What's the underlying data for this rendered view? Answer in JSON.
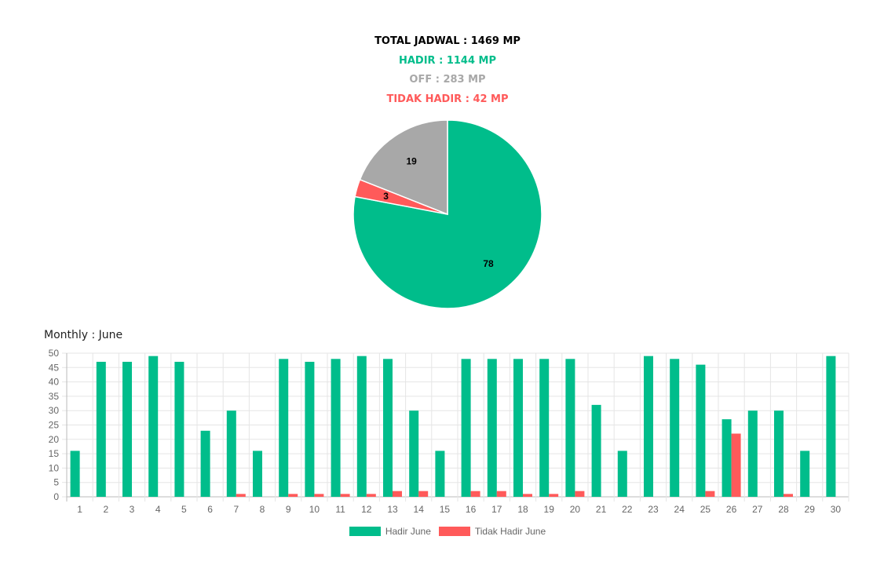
{
  "summary": {
    "total": "TOTAL JADWAL : 1469 MP",
    "hadir": "HADIR : 1144 MP",
    "off": "OFF : 283 MP",
    "tidak_hadir": "TIDAK HADIR : 42 MP"
  },
  "colors": {
    "hadir": "#00bd8b",
    "off": "#a8a8a8",
    "tidak_hadir": "#ff5a5a",
    "grid": "#e5e5e5",
    "tick": "#666666"
  },
  "monthly_title": "Monthly : June",
  "chart_data": [
    {
      "type": "pie",
      "slices": [
        {
          "label": "78",
          "value": 78,
          "color": "#00bd8b"
        },
        {
          "label": "3",
          "value": 3,
          "color": "#ff5a5a"
        },
        {
          "label": "19",
          "value": 19,
          "color": "#a8a8a8"
        }
      ]
    },
    {
      "type": "bar",
      "categories": [
        "1",
        "2",
        "3",
        "4",
        "5",
        "6",
        "7",
        "8",
        "9",
        "10",
        "11",
        "12",
        "13",
        "14",
        "15",
        "16",
        "17",
        "18",
        "19",
        "20",
        "21",
        "22",
        "23",
        "24",
        "25",
        "26",
        "27",
        "28",
        "29",
        "30"
      ],
      "series": [
        {
          "name": "Hadir June",
          "color": "#00bd8b",
          "values": [
            16,
            47,
            47,
            49,
            47,
            23,
            30,
            16,
            48,
            47,
            48,
            49,
            48,
            30,
            16,
            48,
            48,
            48,
            48,
            48,
            32,
            16,
            49,
            48,
            46,
            27,
            30,
            30,
            16,
            49
          ]
        },
        {
          "name": "Tidak Hadir June",
          "color": "#ff5a5a",
          "values": [
            0,
            0,
            0,
            0,
            0,
            0,
            1,
            0,
            1,
            1,
            1,
            1,
            2,
            2,
            0,
            2,
            2,
            1,
            1,
            2,
            0,
            0,
            0,
            0,
            2,
            22,
            0,
            1,
            0,
            0
          ]
        }
      ],
      "yticks": [
        "0",
        "5",
        "10",
        "15",
        "20",
        "25",
        "30",
        "35",
        "40",
        "45",
        "50"
      ],
      "ylim": [
        0,
        50
      ],
      "grid": true,
      "legend_position": "bottom"
    }
  ]
}
